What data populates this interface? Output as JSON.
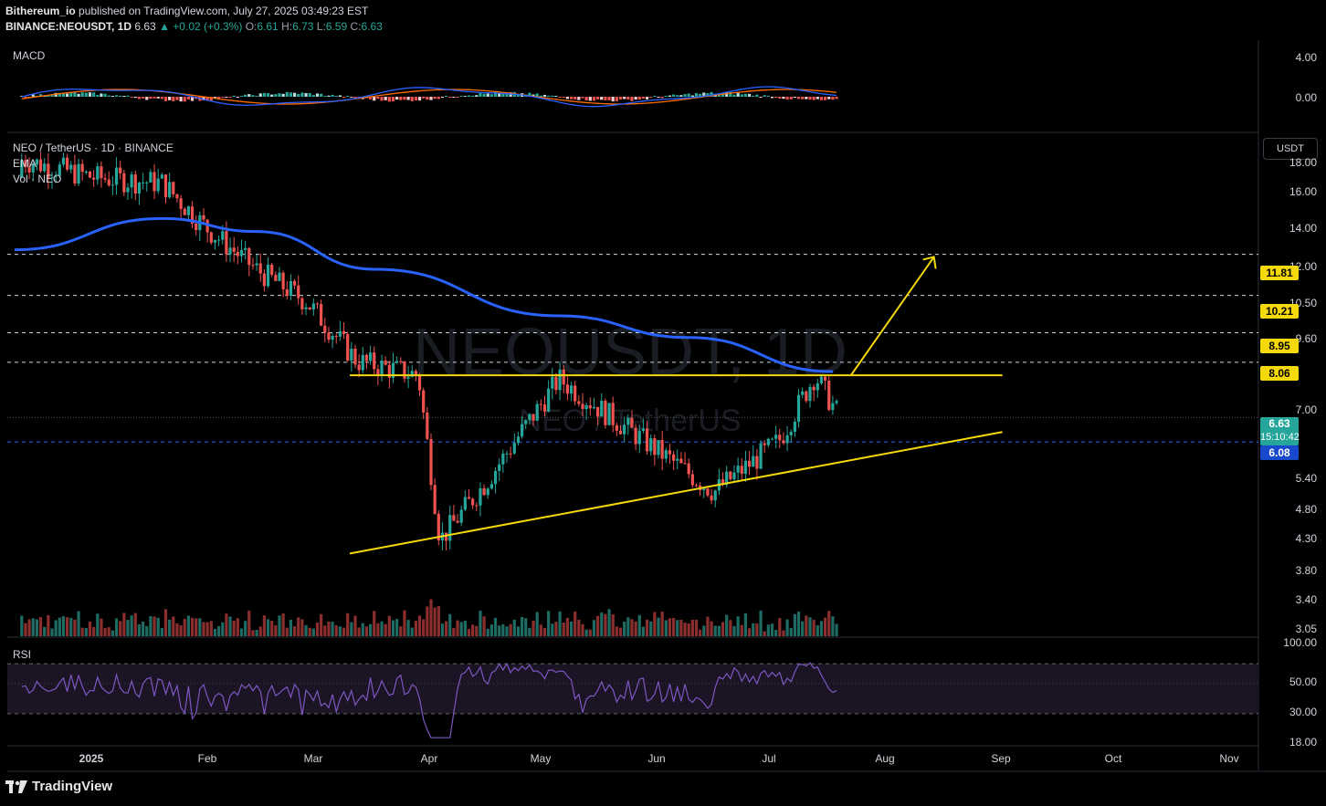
{
  "header": {
    "publisher": "Bithereum_io",
    "published_text": "published on TradingView.com, July 27, 2025 03:49:23 EST",
    "symbol": "BINANCE:NEOUSDT, 1D",
    "price": "6.63",
    "change": "+0.02 (+0.3%)",
    "o_label": "O:",
    "o": "6.61",
    "h_label": "H:",
    "h": "6.73",
    "l_label": "L:",
    "l": "6.59",
    "c_label": "C:",
    "c": "6.63"
  },
  "panes": {
    "macd_title": "MACD",
    "main_title": "NEO / TetherUS · 1D · BINANCE",
    "ema_title": "EMA",
    "vol_title": "Vol · NEO",
    "rsi_title": "RSI",
    "watermark_symbol": "NEOUSDT, 1D",
    "watermark_name": "NEO / TetherUS",
    "currency_button": "USDT"
  },
  "macd_axis": [
    "4.00",
    "0.00"
  ],
  "price_axis": [
    "18.00",
    "16.00",
    "14.00",
    "12.00",
    "10.50",
    "9.60",
    "7.00",
    "5.40",
    "4.80",
    "4.30",
    "3.80",
    "3.40",
    "3.05"
  ],
  "rsi_axis": [
    "100.00",
    "50.00",
    "30.00",
    "18.00"
  ],
  "level_badges": [
    "11.81",
    "10.21",
    "8.95",
    "8.06"
  ],
  "last_price": "6.63",
  "countdown": "15:10:42",
  "support_badge": "6.08",
  "time_axis": [
    "2025",
    "Feb",
    "Mar",
    "Apr",
    "May",
    "Jun",
    "Jul",
    "Aug",
    "Sep",
    "Oct",
    "Nov"
  ],
  "branding": "TradingView",
  "colors": {
    "up": "#26a69a",
    "down": "#ef5350",
    "ema": "#2962ff",
    "trendline": "#f5d90a",
    "rsi": "#7e57c2",
    "macd_line": "#2962ff",
    "signal_line": "#ff6d00"
  },
  "chart_data": {
    "type": "candlestick",
    "title": "NEO / TetherUS · 1D · BINANCE",
    "ylabel": "USDT",
    "ylim": [
      3.05,
      18.0
    ],
    "scale": "log",
    "x_ticks": [
      "2025",
      "Feb",
      "Mar",
      "Apr",
      "May",
      "Jun",
      "Jul",
      "Aug",
      "Sep",
      "Oct",
      "Nov"
    ],
    "horizontal_levels": [
      11.81,
      10.21,
      8.95,
      8.06,
      6.08
    ],
    "last_close": 6.63,
    "price_path_approx": [
      {
        "x": "2025-01-01",
        "y": 15.5
      },
      {
        "x": "2025-01-20",
        "y": 15.2
      },
      {
        "x": "2025-02-01",
        "y": 13.0
      },
      {
        "x": "2025-02-15",
        "y": 11.2
      },
      {
        "x": "2025-03-01",
        "y": 10.0
      },
      {
        "x": "2025-03-15",
        "y": 8.1
      },
      {
        "x": "2025-04-01",
        "y": 7.7
      },
      {
        "x": "2025-04-07",
        "y": 4.3
      },
      {
        "x": "2025-04-20",
        "y": 5.3
      },
      {
        "x": "2025-05-10",
        "y": 7.6
      },
      {
        "x": "2025-06-01",
        "y": 6.2
      },
      {
        "x": "2025-06-22",
        "y": 5.1
      },
      {
        "x": "2025-07-10",
        "y": 6.1
      },
      {
        "x": "2025-07-20",
        "y": 7.7
      },
      {
        "x": "2025-07-27",
        "y": 6.63
      }
    ],
    "ema_path_approx": [
      {
        "x": "2024-12-10",
        "y": 12.0
      },
      {
        "x": "2025-01-20",
        "y": 13.4
      },
      {
        "x": "2025-02-15",
        "y": 12.8
      },
      {
        "x": "2025-03-20",
        "y": 11.2
      },
      {
        "x": "2025-05-10",
        "y": 9.5
      },
      {
        "x": "2025-06-15",
        "y": 8.8
      },
      {
        "x": "2025-07-25",
        "y": 7.8
      }
    ],
    "rsi_ylim": [
      18,
      100
    ],
    "rsi_bands": [
      70,
      30
    ]
  }
}
